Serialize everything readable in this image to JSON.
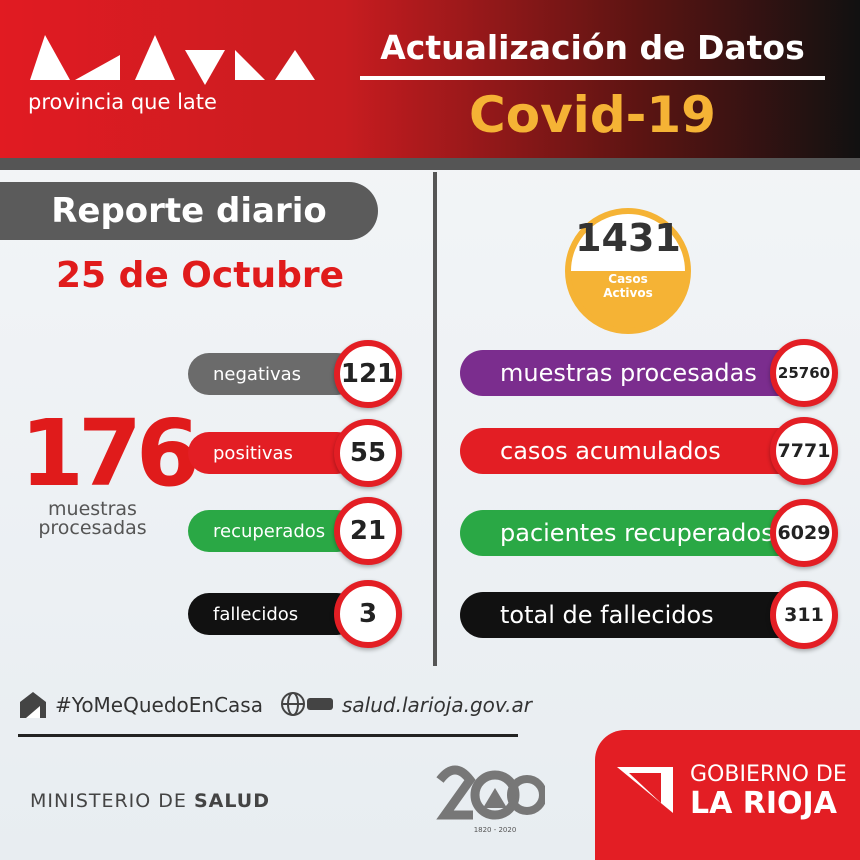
{
  "header": {
    "logo_subtitle": "provincia que late",
    "title": "Actualización de Datos",
    "subtitle": "Covid-19"
  },
  "daily": {
    "title": "Reporte diario",
    "date": "25 de Octubre",
    "total": 176,
    "total_label": "muestras procesadas",
    "items": [
      {
        "label": "negativas",
        "value": 121
      },
      {
        "label": "positivas",
        "value": 55
      },
      {
        "label": "recuperados",
        "value": 21
      },
      {
        "label": "fallecidos",
        "value": 3
      }
    ]
  },
  "totals": {
    "active": {
      "value": 1431,
      "label": "Casos Activos"
    },
    "items": [
      {
        "label": "muestras procesadas",
        "value": 25760
      },
      {
        "label": "casos acumulados",
        "value": 7771
      },
      {
        "label": "pacientes recuperados",
        "value": 6029
      },
      {
        "label": "total de fallecidos",
        "value": 311
      }
    ]
  },
  "footer": {
    "hashtag": "#YoMeQuedoEnCasa",
    "website": "salud.larioja.gov.ar",
    "ministry_prefix": "MINISTERIO DE",
    "ministry": "SALUD",
    "anniversary_years": "1820 - 2020",
    "government_line1": "GOBIERNO DE",
    "government_line2": "LA RIOJA"
  }
}
